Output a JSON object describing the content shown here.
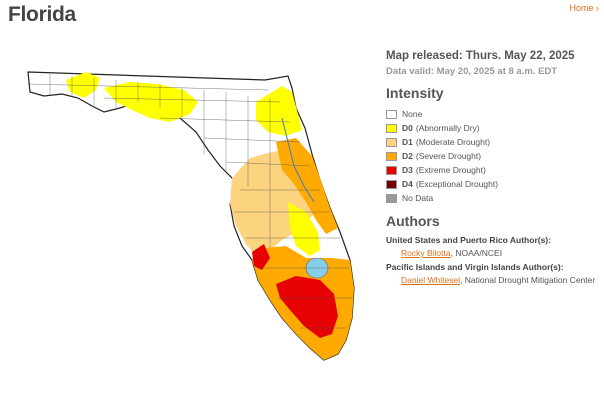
{
  "page": {
    "title": "Florida"
  },
  "breadcrumb": {
    "home": "Home",
    "sep": "›"
  },
  "map": {
    "released": "Map released: Thurs. May 22, 2025",
    "valid": "Data valid: May 20, 2025 at 8 a.m. EDT",
    "colors": {
      "none": "#ffffff",
      "d0": "#ffff00",
      "d1": "#fcd37f",
      "d2": "#ffaa00",
      "d3": "#e60000",
      "d4": "#730000",
      "nodata": "#999999",
      "water": "#87ceeb"
    }
  },
  "legend": {
    "heading": "Intensity",
    "items": [
      {
        "code": "",
        "label": "None",
        "color": "#ffffff"
      },
      {
        "code": "D0",
        "label": "(Abnormally Dry)",
        "color": "#ffff00"
      },
      {
        "code": "D1",
        "label": "(Moderate Drought)",
        "color": "#fcd37f"
      },
      {
        "code": "D2",
        "label": "(Severe Drought)",
        "color": "#ffaa00"
      },
      {
        "code": "D3",
        "label": "(Extreme Drought)",
        "color": "#e60000"
      },
      {
        "code": "D4",
        "label": "(Exceptional Drought)",
        "color": "#730000"
      },
      {
        "code": "",
        "label": "No Data",
        "color": "#999999"
      }
    ]
  },
  "authors": {
    "heading": "Authors",
    "groups": [
      {
        "region": "United States and Puerto Rico Author(s):",
        "name": "Rocky Bilotta",
        "org": ", NOAA/NCEI"
      },
      {
        "region": "Pacific Islands and Virgin Islands Author(s):",
        "name": "Daniel Whitesel",
        "org": ", National Drought Mitigation Center"
      }
    ]
  }
}
